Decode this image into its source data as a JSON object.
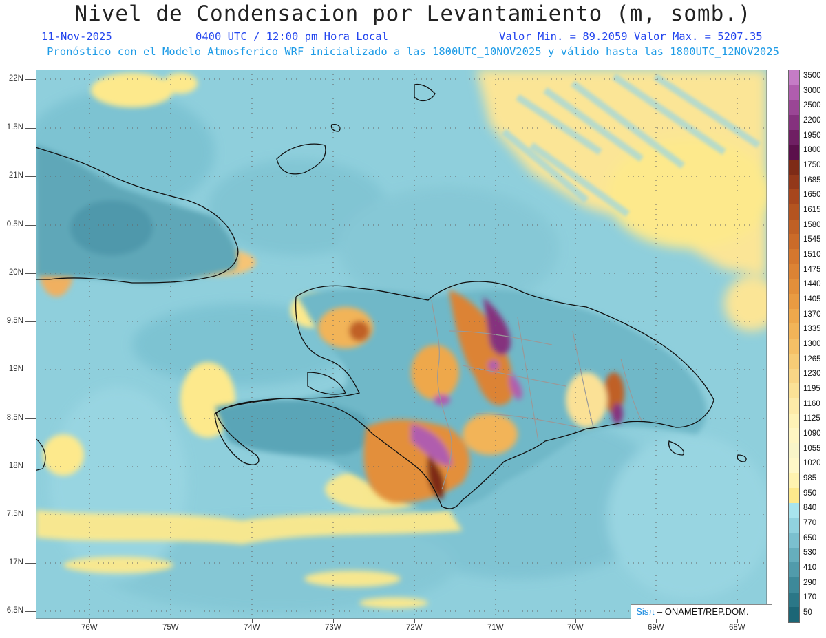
{
  "title": "Nivel de Condensacion por Levantamiento (m, somb.)",
  "date": "11-Nov-2025",
  "time": "0400 UTC / 12:00 pm Hora Local",
  "min_max": "Valor Min. = 89.2059  Valor Max. = 5207.35",
  "model_info": "Pronóstico con el Modelo Atmosferico WRF inicializado a las 1800UTC_10NOV2025 y válido hasta las  1800UTC_12NOV2025",
  "lat_labels": [
    "22N",
    "1.5N",
    "21N",
    "0.5N",
    "20N",
    "9.5N",
    "19N",
    "8.5N",
    "18N",
    "7.5N",
    "17N",
    "6.5N"
  ],
  "lon_labels": [
    "76W",
    "75W",
    "74W",
    "73W",
    "72W",
    "71W",
    "70W",
    "69W",
    "68W"
  ],
  "colorbar": {
    "labels": [
      "3500",
      "3000",
      "2500",
      "2200",
      "1950",
      "1800",
      "1750",
      "1685",
      "1650",
      "1615",
      "1580",
      "1545",
      "1510",
      "1475",
      "1440",
      "1405",
      "1370",
      "1335",
      "1300",
      "1265",
      "1230",
      "1195",
      "1160",
      "1125",
      "1090",
      "1055",
      "1020",
      "985",
      "950",
      "840",
      "770",
      "650",
      "530",
      "410",
      "290",
      "170",
      "50"
    ],
    "colors": [
      "#c57cc6",
      "#b05dae",
      "#9a4695",
      "#85317e",
      "#6f1f63",
      "#5b0f4b",
      "#7e2b17",
      "#93381a",
      "#a7461d",
      "#b45420",
      "#c06025",
      "#cb6b29",
      "#d4772e",
      "#dc8334",
      "#e38f3a",
      "#e99b42",
      "#eea84c",
      "#f2b458",
      "#f5c066",
      "#f7cc76",
      "#f9d686",
      "#fbe196",
      "#fdeaa8",
      "#fef2b6",
      "#fff6c2",
      "#f9f5c8",
      "#fff8c8",
      "#fff3b0",
      "#fde98c",
      "#a8e4ee",
      "#91d2df",
      "#7bc0cf",
      "#66aebd",
      "#519bab",
      "#3d8999",
      "#2b7787",
      "#1c6676"
    ]
  },
  "credit": {
    "sis": "Sisπ",
    "rest": " – ONAMET/REP.DOM."
  }
}
